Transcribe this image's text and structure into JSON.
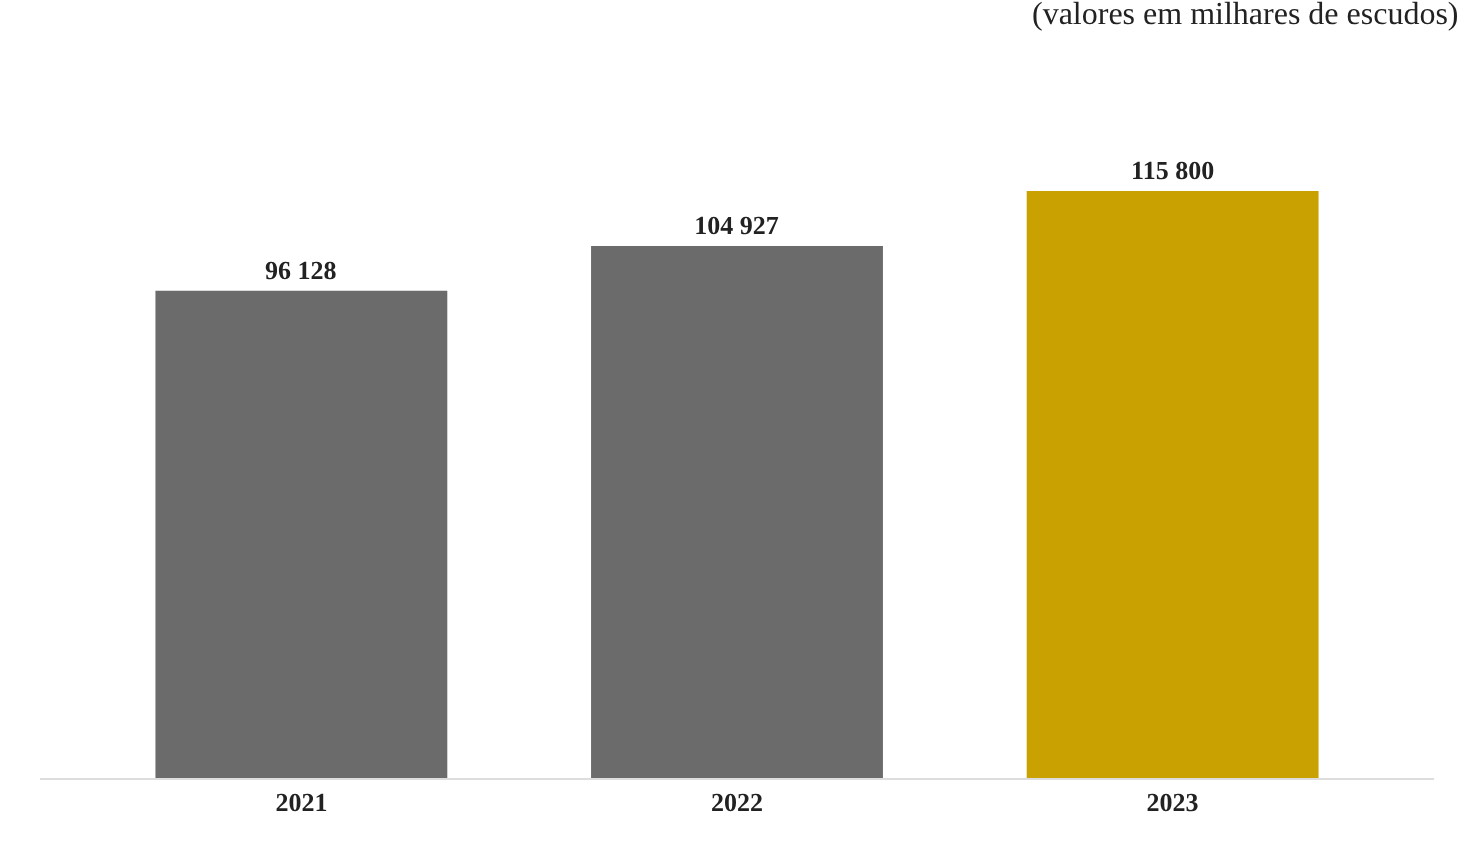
{
  "chart_data": {
    "type": "bar",
    "categories": [
      "2021",
      "2022",
      "2023"
    ],
    "values": [
      96128,
      104927,
      115800
    ],
    "colors": [
      "#6b6b6b",
      "#6b6b6b",
      "#c9a100"
    ],
    "value_labels": [
      "96 128",
      "104 927",
      "115 800"
    ],
    "annotations": [
      "(valores em milhares de escudos)"
    ]
  }
}
